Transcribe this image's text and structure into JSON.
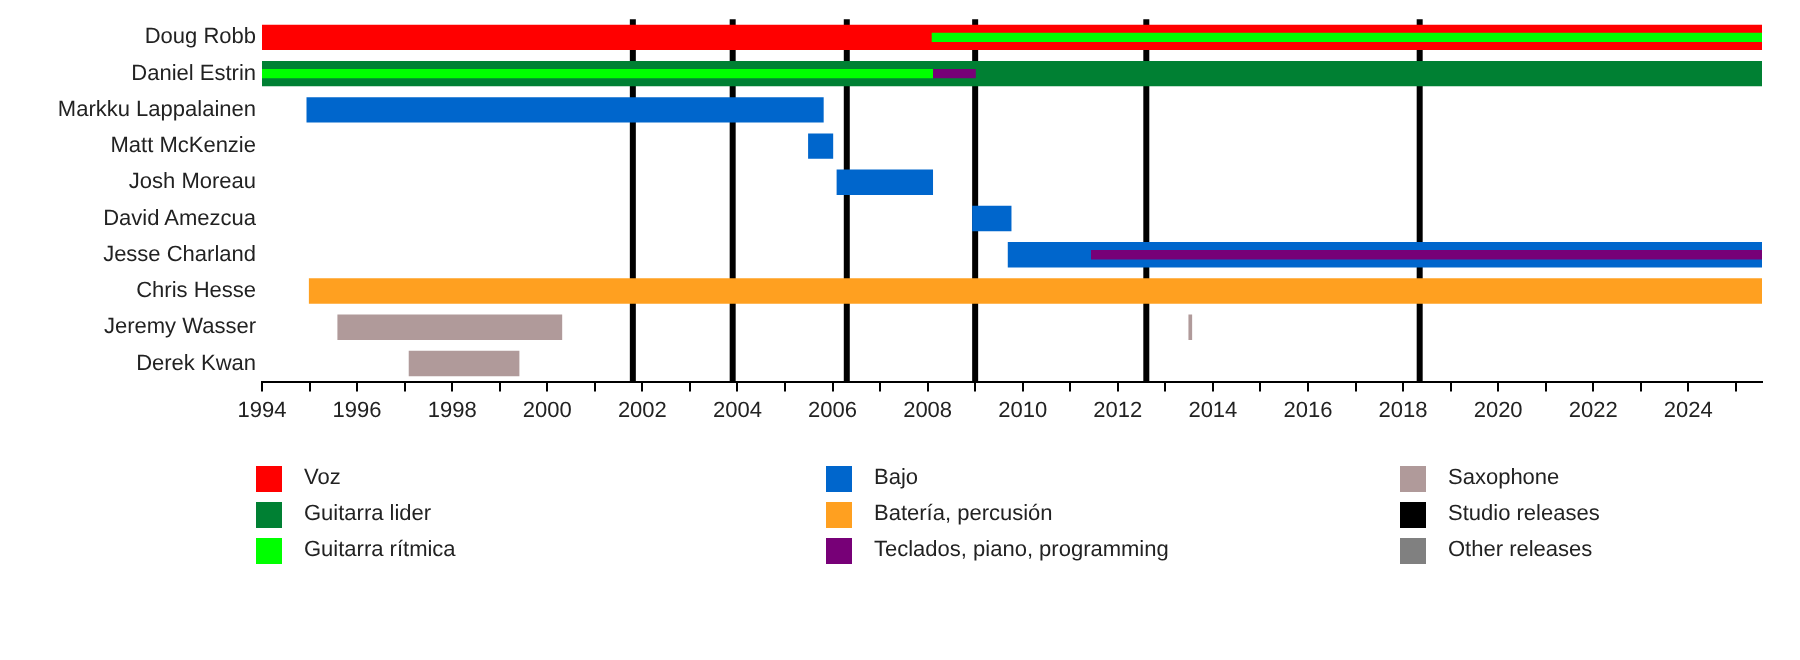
{
  "chart_data": {
    "type": "bar",
    "orientation": "horizontal",
    "categories": [
      "Doug Robb",
      "Daniel Estrin",
      "Markku Lappalainen",
      "Matt McKenzie",
      "Josh Moreau",
      "David Amezcua",
      "Jesse Charland",
      "Chris Hesse",
      "Jeremy Wasser",
      "Derek Kwan"
    ],
    "series": [
      {
        "name": "Voz",
        "color": "#ff0000",
        "base": [
          1994,
          null,
          null,
          null,
          null,
          null,
          null,
          null,
          null,
          null
        ],
        "values": [
          31.55,
          null,
          null,
          null,
          null,
          null,
          null,
          null,
          null,
          null
        ]
      },
      {
        "name": "Guitarra lider",
        "color": "#008033",
        "base": [
          null,
          1994,
          null,
          null,
          null,
          null,
          null,
          null,
          null,
          null
        ],
        "values": [
          null,
          31.55,
          null,
          null,
          null,
          null,
          null,
          null,
          null,
          null
        ]
      },
      {
        "name": "Guitarra rítmica",
        "color": "#00ff00",
        "base": [
          2008.1,
          1994,
          null,
          null,
          null,
          null,
          null,
          null,
          null,
          null
        ],
        "values": [
          17.45,
          14.1,
          null,
          null,
          null,
          null,
          null,
          null,
          null,
          null
        ]
      },
      {
        "name": "Bajo",
        "color": "#0066cc",
        "base": [
          null,
          null,
          1994.95,
          2005.5,
          2006.1,
          2008.95,
          2009.7,
          null,
          null,
          null
        ],
        "values": [
          null,
          null,
          10.85,
          0.5,
          2.0,
          0.8,
          15.85,
          null,
          null,
          null
        ]
      },
      {
        "name": "Batería, percusión",
        "color": "#ffa020",
        "base": [
          null,
          null,
          null,
          null,
          null,
          null,
          null,
          1995.0,
          null,
          null
        ],
        "values": [
          null,
          null,
          null,
          null,
          null,
          null,
          null,
          30.55,
          null,
          null
        ]
      },
      {
        "name": "Teclados, piano, programming",
        "color": "#770077",
        "base": [
          null,
          2008.1,
          null,
          null,
          null,
          null,
          2011.45,
          null,
          null,
          null
        ],
        "values": [
          null,
          0.9,
          null,
          null,
          null,
          null,
          14.1,
          null,
          null,
          null
        ]
      },
      {
        "name": "Saxophone",
        "color": "#b09a9a",
        "base": [
          null,
          null,
          null,
          null,
          null,
          null,
          null,
          null,
          1995.6,
          1997.1
        ],
        "values": [
          null,
          null,
          null,
          null,
          null,
          null,
          null,
          null,
          4.7,
          2.3
        ]
      },
      {
        "color": "#b09a9a",
        "base": [
          null,
          null,
          null,
          null,
          null,
          null,
          null,
          null,
          2013.5,
          null
        ],
        "values": [
          null,
          null,
          null,
          null,
          null,
          null,
          null,
          null,
          0.05,
          null
        ]
      },
      {
        "name": "Studio releases",
        "color": "#000000",
        "values": [
          null,
          null,
          null,
          null,
          null,
          null,
          null,
          null,
          null,
          null
        ]
      },
      {
        "name": "Other releases",
        "color": "#808080",
        "values": [
          null,
          null,
          null,
          null,
          null,
          null,
          null,
          null,
          null,
          null
        ]
      }
    ],
    "ref_lines": [
      {
        "axis": "x",
        "value": 2001.8,
        "color": "#000000"
      },
      {
        "axis": "x",
        "value": 2003.9,
        "color": "#000000"
      },
      {
        "axis": "x",
        "value": 2006.3,
        "color": "#000000"
      },
      {
        "axis": "x",
        "value": 2009.0,
        "color": "#000000"
      },
      {
        "axis": "x",
        "value": 2012.6,
        "color": "#000000"
      },
      {
        "axis": "x",
        "value": 2018.35,
        "color": "#000000"
      }
    ],
    "xlim": [
      1994,
      2025.55
    ],
    "xticks": [
      1994,
      {
        "value": 1995,
        "label": null
      },
      1996,
      {
        "value": 1997,
        "label": null
      },
      1998,
      {
        "value": 1999,
        "label": null
      },
      2000,
      {
        "value": 2001,
        "label": null
      },
      2002,
      {
        "value": 2003,
        "label": null
      },
      2004,
      {
        "value": 2005,
        "label": null
      },
      2006,
      {
        "value": 2007,
        "label": null
      },
      2008,
      {
        "value": 2009,
        "label": null
      },
      2010,
      {
        "value": 2011,
        "label": null
      },
      2012,
      {
        "value": 2013,
        "label": null
      },
      2014,
      {
        "value": 2015,
        "label": null
      },
      2016,
      {
        "value": 2017,
        "label": null
      },
      2018,
      {
        "value": 2019,
        "label": null
      },
      2020,
      {
        "value": 2021,
        "label": null
      },
      2022,
      {
        "value": 2023,
        "label": null
      },
      2024,
      {
        "value": 2025,
        "label": null
      }
    ],
    "grid": false,
    "legend": "bottom"
  }
}
